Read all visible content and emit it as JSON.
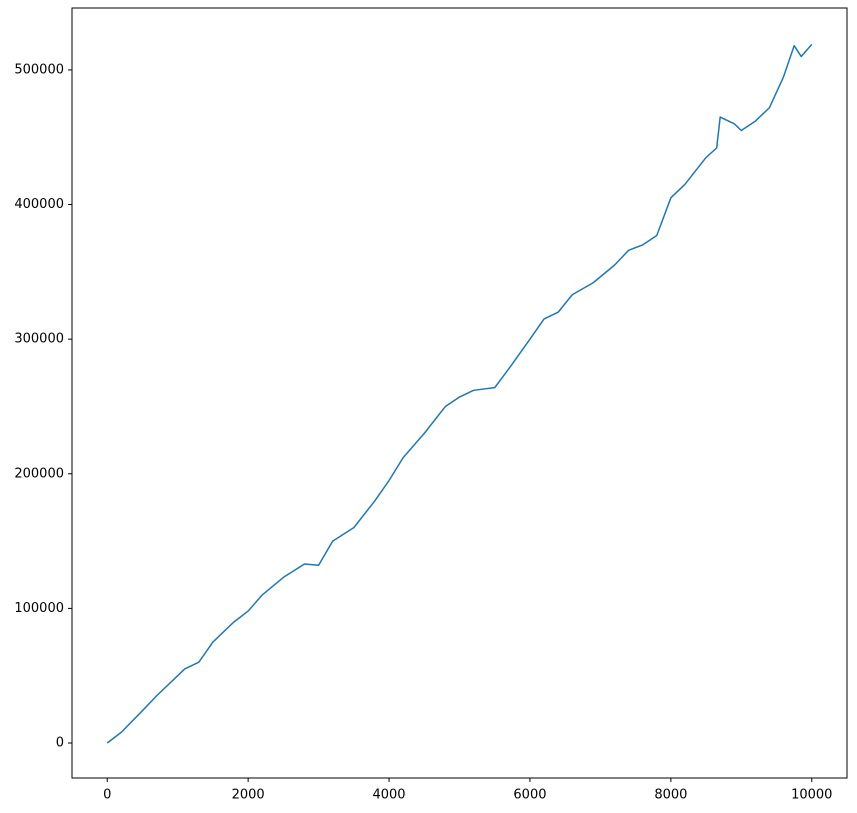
{
  "chart_data": {
    "type": "line",
    "x": [
      0,
      200,
      500,
      700,
      1000,
      1100,
      1300,
      1500,
      1800,
      2000,
      2200,
      2500,
      2800,
      3000,
      3200,
      3500,
      3800,
      4000,
      4200,
      4500,
      4800,
      5000,
      5200,
      5500,
      5700,
      6000,
      6200,
      6400,
      6600,
      6900,
      7200,
      7400,
      7600,
      7800,
      8000,
      8200,
      8500,
      8650,
      8700,
      8900,
      9000,
      9200,
      9400,
      9600,
      9750,
      9850,
      10000
    ],
    "values": [
      0,
      8000,
      24000,
      35000,
      50000,
      55000,
      60000,
      75000,
      90000,
      98000,
      110000,
      123000,
      133000,
      132000,
      150000,
      160000,
      180000,
      195000,
      212000,
      230000,
      250000,
      257000,
      262000,
      264000,
      278000,
      300000,
      315000,
      320000,
      333000,
      342000,
      355000,
      366000,
      370000,
      377000,
      405000,
      415000,
      435000,
      442000,
      465000,
      460000,
      455000,
      462000,
      472000,
      495000,
      518000,
      510000,
      519000
    ],
    "color": "#1f77b4",
    "xlim": [
      -500,
      10500
    ],
    "xticks": [
      0,
      2000,
      4000,
      6000,
      8000,
      10000
    ],
    "ylim": [
      -26000,
      546000
    ],
    "yticks": [
      0,
      100000,
      200000,
      300000,
      400000,
      500000
    ],
    "grid": false
  }
}
